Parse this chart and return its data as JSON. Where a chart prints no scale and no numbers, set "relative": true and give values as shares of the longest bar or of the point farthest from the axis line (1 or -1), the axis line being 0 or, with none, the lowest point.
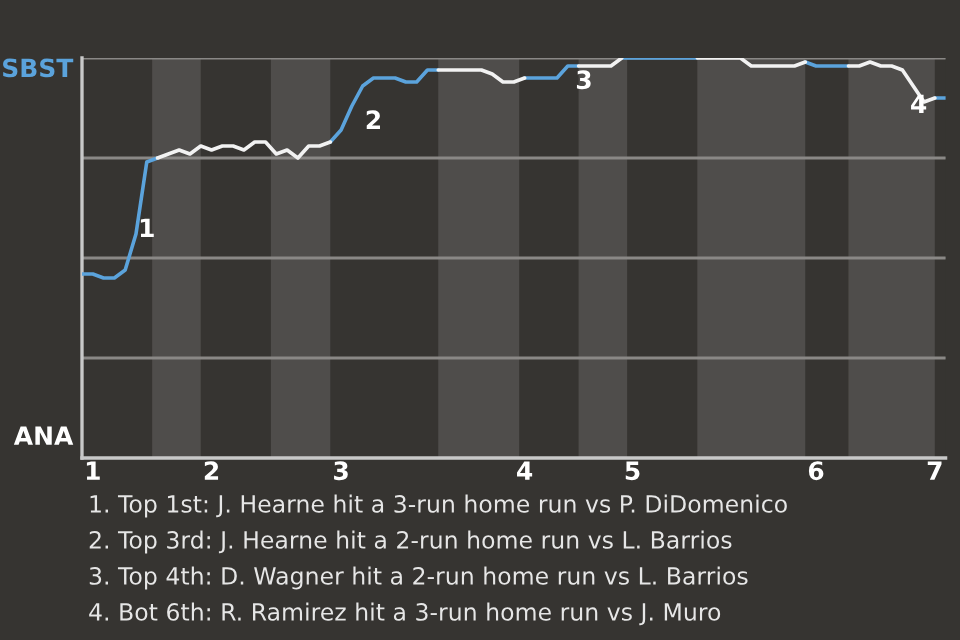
{
  "chart_data": {
    "type": "line",
    "relative": true,
    "categories": [
      null,
      "1",
      null,
      null,
      null,
      null,
      null,
      null,
      null,
      null,
      null,
      null,
      "2",
      null,
      null,
      null,
      null,
      null,
      null,
      null,
      null,
      null,
      null,
      null,
      "3",
      null,
      null,
      null,
      null,
      null,
      null,
      null,
      null,
      null,
      null,
      null,
      null,
      null,
      null,
      null,
      null,
      "4",
      null,
      null,
      null,
      null,
      null,
      null,
      null,
      null,
      null,
      "5",
      null,
      null,
      null,
      null,
      null,
      null,
      null,
      null,
      null,
      null,
      null,
      null,
      null,
      null,
      null,
      null,
      "6",
      null,
      null,
      null,
      null,
      null,
      null,
      null,
      null,
      null,
      null,
      "7",
      null
    ],
    "grid": "y",
    "marker": "none",
    "line_style": "solid",
    "series": [
      {
        "color": "#5ba3dc",
        "values": [
          0.46,
          0.46,
          0.45,
          0.45,
          0.47,
          0.56,
          0.74,
          0.75,
          null,
          null,
          null,
          null,
          null,
          null,
          null,
          null,
          null,
          null,
          null,
          null,
          null,
          null,
          null,
          0.79,
          0.82,
          0.88,
          0.93,
          0.95,
          0.95,
          0.95,
          0.94,
          0.94,
          0.97,
          0.97,
          null,
          null,
          null,
          null,
          null,
          null,
          null,
          0.95,
          0.95,
          0.95,
          0.95,
          0.98,
          0.98,
          null,
          null,
          null,
          1.0,
          1.0,
          1.0,
          1.0,
          1.0,
          1.0,
          1.0,
          1.0,
          null,
          null,
          null,
          null,
          null,
          null,
          null,
          null,
          null,
          0.99,
          0.98,
          0.98,
          0.98,
          0.98,
          null,
          null,
          null,
          null,
          null,
          null,
          null,
          0.9,
          0.9
        ]
      },
      {
        "color": "#f2f2f2",
        "values": [
          null,
          null,
          null,
          null,
          null,
          null,
          null,
          0.75,
          0.76,
          0.77,
          0.76,
          0.78,
          0.77,
          0.78,
          0.78,
          0.77,
          0.79,
          0.79,
          0.76,
          0.77,
          0.75,
          0.78,
          0.78,
          0.79,
          null,
          null,
          null,
          null,
          null,
          null,
          null,
          null,
          null,
          0.97,
          0.97,
          0.97,
          0.97,
          0.97,
          0.96,
          0.94,
          0.94,
          0.95,
          null,
          null,
          null,
          null,
          0.98,
          0.98,
          0.98,
          0.98,
          1.0,
          null,
          null,
          null,
          null,
          null,
          null,
          1.0,
          1.0,
          1.0,
          1.0,
          1.0,
          0.98,
          0.98,
          0.98,
          0.98,
          0.98,
          0.99,
          null,
          null,
          null,
          0.98,
          0.98,
          0.99,
          0.98,
          0.98,
          0.97,
          0.93,
          0.89,
          0.9,
          null
        ]
      }
    ],
    "annotations": [
      "SBST",
      "ANA",
      "1",
      "2",
      "3",
      "4",
      "1. Top 1st: J. Hearne hit a 3-run home run vs P. DiDomenico",
      "2. Top 3rd: J. Hearne hit a 2-run home run vs L. Barrios",
      "3. Top 4th: D. Wagner hit a 2-run home run vs L. Barrios",
      "4. Bot 6th: R. Ramirez hit a 3-run home run vs J. Muro"
    ]
  }
}
